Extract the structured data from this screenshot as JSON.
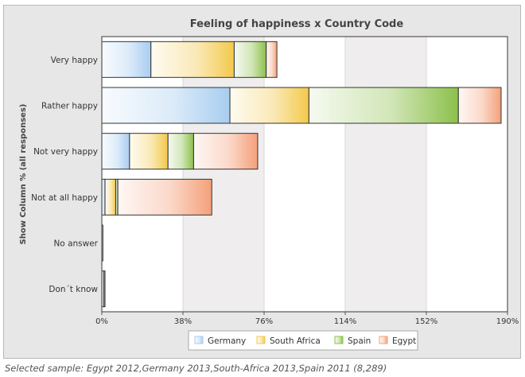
{
  "chart_data": {
    "type": "bar",
    "orientation": "horizontal",
    "stacked": true,
    "title": "Feeling of happiness x Country Code",
    "ylabel": "Show Column % (all responses)",
    "xlabel": "",
    "xlim": [
      0,
      190
    ],
    "x_ticks": [
      "0%",
      "38%",
      "76%",
      "114%",
      "152%",
      "190%"
    ],
    "categories": [
      "Very happy",
      "Rather happy",
      "Not very happy",
      "Not at all happy",
      "No answer",
      "Don´t know"
    ],
    "series": [
      {
        "name": "Germany",
        "color": "#a8cdf0",
        "values": [
          23,
          60,
          13,
          1.5,
          0.5,
          1
        ]
      },
      {
        "name": "South Africa",
        "color": "#f3c94a",
        "values": [
          39,
          37,
          18,
          5,
          0,
          0.5
        ]
      },
      {
        "name": "Spain",
        "color": "#8cc04b",
        "values": [
          15,
          70,
          12,
          1,
          0,
          0
        ]
      },
      {
        "name": "Egypt",
        "color": "#f4a07a",
        "values": [
          5,
          20,
          30,
          44,
          0,
          0
        ]
      }
    ],
    "legend_position": "bottom",
    "grid": "alternating vertical bands"
  },
  "footer": "Selected sample: Egypt 2012,Germany 2013,South-Africa 2013,Spain 2011 (8,289)"
}
